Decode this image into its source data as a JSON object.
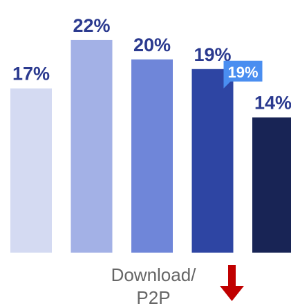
{
  "chart_data": {
    "type": "bar",
    "categories": [
      "",
      "",
      "",
      "",
      ""
    ],
    "values": [
      17,
      22,
      20,
      19,
      14
    ],
    "value_labels": [
      "17%",
      "22%",
      "20%",
      "19%",
      "14%"
    ],
    "colors": [
      "#d4daf2",
      "#a3b1e6",
      "#6f86d9",
      "#2e45a3",
      "#182455"
    ],
    "ylim": [
      0,
      24
    ],
    "grid": false,
    "legend": "none",
    "highlight": {
      "index": 3,
      "label": "19%",
      "color": "#4a8ef0"
    },
    "annotation": {
      "label_lines": [
        "Download/",
        "P2P"
      ],
      "arrow": "down-arrow-icon",
      "arrow_color": "#c00000"
    }
  }
}
